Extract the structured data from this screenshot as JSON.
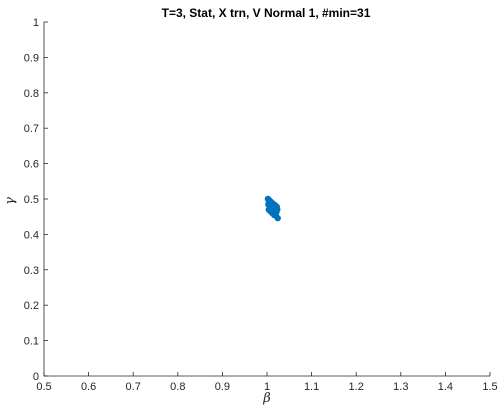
{
  "chart_data": {
    "type": "scatter",
    "title": "T=3, Stat, X trn, V Normal 1, #min=31",
    "xlabel": "β",
    "ylabel": "γ",
    "xlim": [
      0.5,
      1.5
    ],
    "ylim": [
      0,
      1
    ],
    "xticks": [
      0.5,
      0.6,
      0.7,
      0.8,
      0.9,
      1,
      1.1,
      1.2,
      1.3,
      1.4,
      1.5
    ],
    "xtick_labels": [
      "0.5",
      "0.6",
      "0.7",
      "0.8",
      "0.9",
      "1",
      "1.1",
      "1.2",
      "1.3",
      "1.4",
      "1.5"
    ],
    "yticks": [
      0,
      0.1,
      0.2,
      0.3,
      0.4,
      0.5,
      0.6,
      0.7,
      0.8,
      0.9,
      1
    ],
    "ytick_labels": [
      "0",
      "0.1",
      "0.2",
      "0.3",
      "0.4",
      "0.5",
      "0.6",
      "0.7",
      "0.8",
      "0.9",
      "1"
    ],
    "grid": false,
    "marker_color": "#0072BD",
    "series": [
      {
        "x": [
          1.002,
          1.004,
          1.006,
          1.008,
          1.01,
          1.012,
          1.014,
          1.016,
          1.018,
          1.02,
          1.022,
          1.003,
          1.005,
          1.007,
          1.009,
          1.011,
          1.013,
          1.015,
          1.017,
          1.019,
          1.021,
          1.023,
          1.006,
          1.01,
          1.014,
          1.018,
          1.004,
          1.008,
          1.012,
          1.016,
          1.024
        ],
        "y": [
          0.5,
          0.498,
          0.495,
          0.493,
          0.49,
          0.488,
          0.486,
          0.484,
          0.482,
          0.48,
          0.478,
          0.485,
          0.482,
          0.479,
          0.476,
          0.473,
          0.47,
          0.468,
          0.466,
          0.464,
          0.462,
          0.47,
          0.492,
          0.487,
          0.478,
          0.472,
          0.47,
          0.465,
          0.46,
          0.455,
          0.446
        ]
      }
    ]
  }
}
